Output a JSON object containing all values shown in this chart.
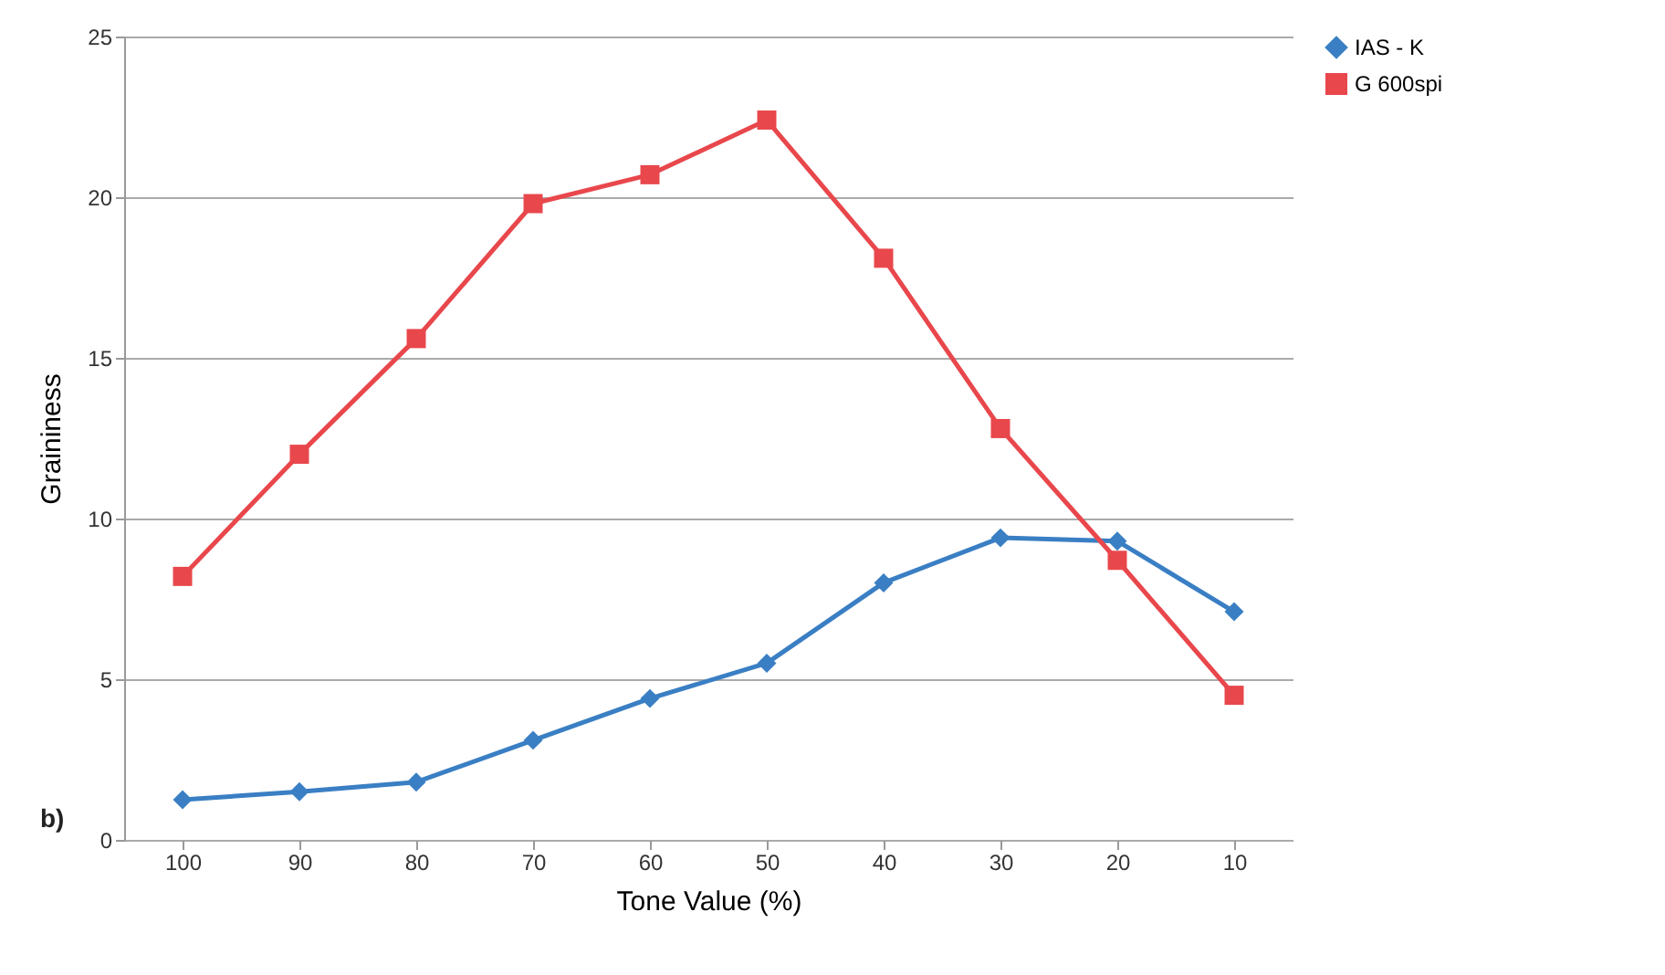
{
  "chart_data": {
    "type": "line",
    "xlabel": "Tone Value (%)",
    "ylabel": "Graininess",
    "categories": [
      "100",
      "90",
      "80",
      "70",
      "60",
      "50",
      "40",
      "30",
      "20",
      "10"
    ],
    "series": [
      {
        "name": "IAS - K",
        "color": "#3a7fc4",
        "marker": "diamond",
        "values": [
          1.25,
          1.5,
          1.8,
          3.1,
          4.4,
          5.5,
          8.0,
          9.4,
          9.3,
          7.1
        ]
      },
      {
        "name": "G 600spi",
        "color": "#e8474c",
        "marker": "square",
        "values": [
          8.2,
          12.0,
          15.6,
          19.8,
          20.7,
          22.4,
          18.1,
          12.8,
          8.7,
          4.5
        ]
      }
    ],
    "ylim": [
      0,
      25
    ],
    "yticks": [
      0,
      5,
      10,
      15,
      20,
      25
    ],
    "grid": "y",
    "legend": "right",
    "line_style": "solid",
    "annotations": [
      "b)"
    ]
  }
}
